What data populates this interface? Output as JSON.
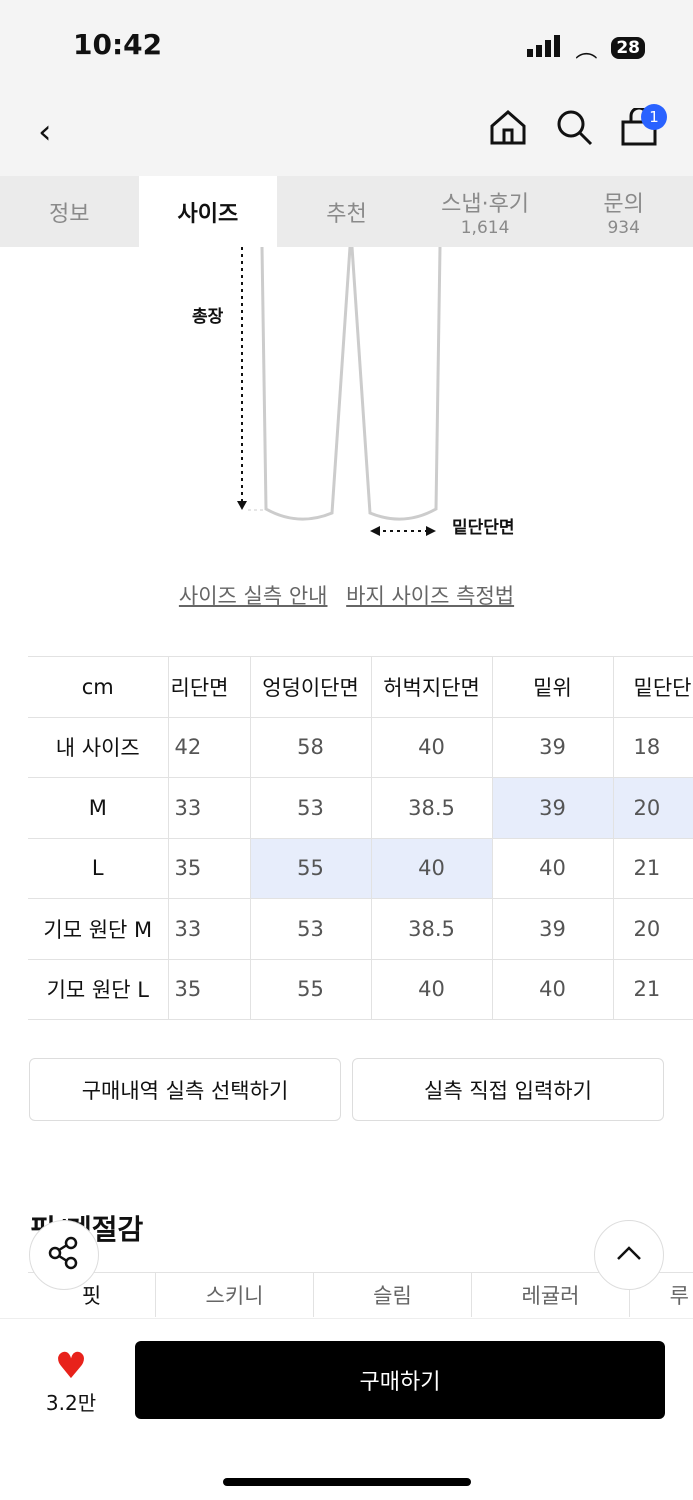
{
  "status": {
    "time": "10:42",
    "battery": "28"
  },
  "header": {
    "cart_count": "1"
  },
  "tabs": [
    {
      "label": "정보"
    },
    {
      "label": "사이즈"
    },
    {
      "label": "추천"
    },
    {
      "label": "스냅·후기",
      "count": "1,614"
    },
    {
      "label": "문의",
      "count": "934"
    }
  ],
  "diagram": {
    "length_label": "총장",
    "hem_label": "밑단단면"
  },
  "links": {
    "guide": "사이즈 실측 안내",
    "how": "바지 사이즈 측정법"
  },
  "table": {
    "headers": [
      "cm",
      "리단면",
      "엉덩이단면",
      "허벅지단면",
      "밑위",
      "밑단단"
    ],
    "rows": [
      [
        "내 사이즈",
        "42",
        "58",
        "40",
        "39",
        "18"
      ],
      [
        "M",
        "33",
        "53",
        "38.5",
        "39",
        "20"
      ],
      [
        "L",
        "35",
        "55",
        "40",
        "40",
        "21"
      ],
      [
        "기모 원단 M",
        "33",
        "53",
        "38.5",
        "39",
        "20"
      ],
      [
        "기모 원단 L",
        "35",
        "55",
        "40",
        "40",
        "21"
      ]
    ]
  },
  "buttons": {
    "history": "구매내역 실측 선택하기",
    "manual": "실측 직접 입력하기"
  },
  "fit": {
    "title": "핏/계절감",
    "items": [
      "핏",
      "스키니",
      "슬림",
      "레귤러",
      "루"
    ]
  },
  "bottom": {
    "likes": "3.2만",
    "buy": "구매하기"
  },
  "accent": "#2962ff",
  "highlight": "#e7edfb"
}
